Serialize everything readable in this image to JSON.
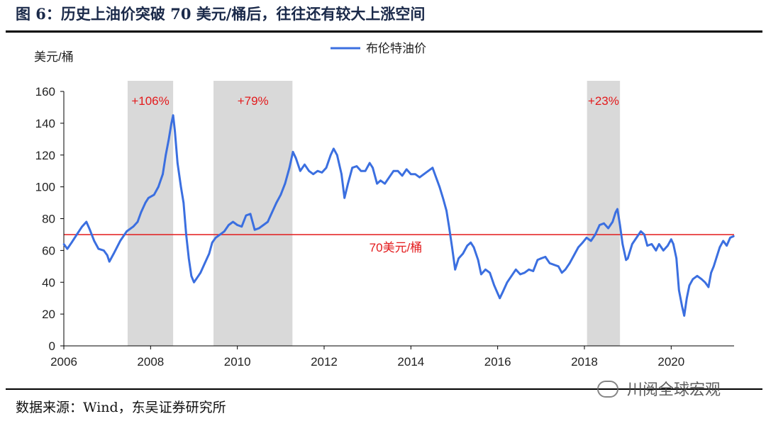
{
  "figure": {
    "title": "图 6：历史上油价突破 70 美元/桶后，往往还有较大上涨空间",
    "source": "数据来源：Wind，东吴证券研究所",
    "watermark": "川阅全球宏观"
  },
  "chart_data": {
    "type": "line",
    "title": "",
    "xlabel": "",
    "ylabel": "美元/桶",
    "ylim": [
      0,
      160
    ],
    "yticks": [
      0,
      20,
      40,
      60,
      80,
      100,
      120,
      140,
      160
    ],
    "xlim": [
      2006,
      2021.45
    ],
    "xticks": [
      2006,
      2008,
      2010,
      2012,
      2014,
      2016,
      2018,
      2020
    ],
    "legend": "top-center",
    "grid": false,
    "series": [
      {
        "name": "布伦特油价",
        "color": "#3b6fe0",
        "points": [
          [
            2006.0,
            64
          ],
          [
            2006.08,
            61
          ],
          [
            2006.18,
            65
          ],
          [
            2006.3,
            70
          ],
          [
            2006.42,
            75
          ],
          [
            2006.52,
            78
          ],
          [
            2006.6,
            73
          ],
          [
            2006.7,
            66
          ],
          [
            2006.8,
            61
          ],
          [
            2006.92,
            60
          ],
          [
            2007.0,
            57
          ],
          [
            2007.05,
            53
          ],
          [
            2007.15,
            58
          ],
          [
            2007.3,
            66
          ],
          [
            2007.45,
            72
          ],
          [
            2007.6,
            75
          ],
          [
            2007.7,
            78
          ],
          [
            2007.78,
            84
          ],
          [
            2007.88,
            90
          ],
          [
            2007.95,
            93
          ],
          [
            2008.08,
            95
          ],
          [
            2008.18,
            100
          ],
          [
            2008.28,
            108
          ],
          [
            2008.35,
            120
          ],
          [
            2008.42,
            130
          ],
          [
            2008.48,
            140
          ],
          [
            2008.52,
            145
          ],
          [
            2008.56,
            135
          ],
          [
            2008.62,
            115
          ],
          [
            2008.7,
            100
          ],
          [
            2008.76,
            90
          ],
          [
            2008.82,
            70
          ],
          [
            2008.88,
            55
          ],
          [
            2008.94,
            44
          ],
          [
            2009.0,
            40
          ],
          [
            2009.05,
            42
          ],
          [
            2009.15,
            46
          ],
          [
            2009.25,
            52
          ],
          [
            2009.35,
            58
          ],
          [
            2009.42,
            65
          ],
          [
            2009.5,
            68
          ],
          [
            2009.6,
            70
          ],
          [
            2009.7,
            72
          ],
          [
            2009.8,
            76
          ],
          [
            2009.9,
            78
          ],
          [
            2010.0,
            76
          ],
          [
            2010.1,
            75
          ],
          [
            2010.2,
            82
          ],
          [
            2010.3,
            83
          ],
          [
            2010.4,
            73
          ],
          [
            2010.5,
            74
          ],
          [
            2010.6,
            76
          ],
          [
            2010.7,
            78
          ],
          [
            2010.8,
            84
          ],
          [
            2010.9,
            90
          ],
          [
            2011.0,
            95
          ],
          [
            2011.1,
            102
          ],
          [
            2011.2,
            112
          ],
          [
            2011.28,
            122
          ],
          [
            2011.35,
            118
          ],
          [
            2011.45,
            110
          ],
          [
            2011.55,
            114
          ],
          [
            2011.65,
            110
          ],
          [
            2011.75,
            108
          ],
          [
            2011.85,
            110
          ],
          [
            2011.95,
            109
          ],
          [
            2012.05,
            112
          ],
          [
            2012.15,
            120
          ],
          [
            2012.22,
            124
          ],
          [
            2012.3,
            120
          ],
          [
            2012.4,
            108
          ],
          [
            2012.47,
            93
          ],
          [
            2012.55,
            102
          ],
          [
            2012.65,
            112
          ],
          [
            2012.75,
            113
          ],
          [
            2012.85,
            110
          ],
          [
            2012.95,
            110
          ],
          [
            2013.05,
            115
          ],
          [
            2013.12,
            112
          ],
          [
            2013.22,
            102
          ],
          [
            2013.3,
            104
          ],
          [
            2013.4,
            102
          ],
          [
            2013.5,
            106
          ],
          [
            2013.6,
            110
          ],
          [
            2013.7,
            110
          ],
          [
            2013.8,
            107
          ],
          [
            2013.9,
            111
          ],
          [
            2014.0,
            108
          ],
          [
            2014.1,
            108
          ],
          [
            2014.2,
            106
          ],
          [
            2014.3,
            108
          ],
          [
            2014.4,
            110
          ],
          [
            2014.5,
            112
          ],
          [
            2014.58,
            106
          ],
          [
            2014.66,
            100
          ],
          [
            2014.75,
            92
          ],
          [
            2014.82,
            85
          ],
          [
            2014.88,
            75
          ],
          [
            2014.95,
            62
          ],
          [
            2015.02,
            48
          ],
          [
            2015.1,
            55
          ],
          [
            2015.2,
            58
          ],
          [
            2015.3,
            63
          ],
          [
            2015.38,
            65
          ],
          [
            2015.45,
            62
          ],
          [
            2015.55,
            54
          ],
          [
            2015.62,
            45
          ],
          [
            2015.72,
            48
          ],
          [
            2015.82,
            46
          ],
          [
            2015.92,
            38
          ],
          [
            2016.0,
            33
          ],
          [
            2016.05,
            30
          ],
          [
            2016.12,
            34
          ],
          [
            2016.22,
            40
          ],
          [
            2016.32,
            44
          ],
          [
            2016.42,
            48
          ],
          [
            2016.52,
            45
          ],
          [
            2016.62,
            46
          ],
          [
            2016.72,
            48
          ],
          [
            2016.82,
            47
          ],
          [
            2016.92,
            54
          ],
          [
            2017.0,
            55
          ],
          [
            2017.1,
            56
          ],
          [
            2017.2,
            52
          ],
          [
            2017.3,
            51
          ],
          [
            2017.4,
            50
          ],
          [
            2017.48,
            46
          ],
          [
            2017.56,
            48
          ],
          [
            2017.66,
            52
          ],
          [
            2017.76,
            57
          ],
          [
            2017.86,
            62
          ],
          [
            2017.96,
            65
          ],
          [
            2018.05,
            68
          ],
          [
            2018.15,
            66
          ],
          [
            2018.25,
            70
          ],
          [
            2018.35,
            76
          ],
          [
            2018.45,
            77
          ],
          [
            2018.55,
            74
          ],
          [
            2018.65,
            78
          ],
          [
            2018.72,
            84
          ],
          [
            2018.76,
            86
          ],
          [
            2018.82,
            76
          ],
          [
            2018.88,
            64
          ],
          [
            2018.96,
            54
          ],
          [
            2019.0,
            55
          ],
          [
            2019.1,
            64
          ],
          [
            2019.2,
            68
          ],
          [
            2019.3,
            72
          ],
          [
            2019.38,
            70
          ],
          [
            2019.45,
            63
          ],
          [
            2019.55,
            64
          ],
          [
            2019.65,
            60
          ],
          [
            2019.72,
            64
          ],
          [
            2019.82,
            60
          ],
          [
            2019.92,
            63
          ],
          [
            2020.0,
            67
          ],
          [
            2020.05,
            64
          ],
          [
            2020.12,
            55
          ],
          [
            2020.18,
            35
          ],
          [
            2020.25,
            25
          ],
          [
            2020.3,
            19
          ],
          [
            2020.36,
            30
          ],
          [
            2020.42,
            38
          ],
          [
            2020.5,
            42
          ],
          [
            2020.6,
            44
          ],
          [
            2020.7,
            42
          ],
          [
            2020.78,
            40
          ],
          [
            2020.86,
            37
          ],
          [
            2020.92,
            46
          ],
          [
            2020.98,
            50
          ],
          [
            2021.05,
            56
          ],
          [
            2021.12,
            62
          ],
          [
            2021.2,
            66
          ],
          [
            2021.28,
            63
          ],
          [
            2021.36,
            68
          ],
          [
            2021.44,
            69
          ]
        ]
      }
    ],
    "reference_line": {
      "value": 70,
      "label": "70美元/桶",
      "color": "#e31a1c"
    },
    "shaded_periods": [
      {
        "start": 2007.47,
        "end": 2008.52,
        "label": "+106%"
      },
      {
        "start": 2009.45,
        "end": 2011.27,
        "label": "+79%"
      },
      {
        "start": 2018.06,
        "end": 2018.82,
        "label": "+23%"
      }
    ],
    "shade_color": "#d9d9d9",
    "annotation_color": "#e31a1c"
  }
}
